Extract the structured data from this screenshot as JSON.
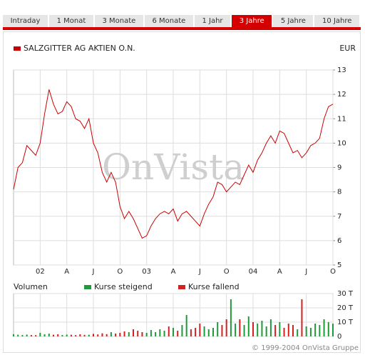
{
  "tabs": [
    {
      "label": "Intraday",
      "active": false
    },
    {
      "label": "1 Monat",
      "active": false
    },
    {
      "label": "3 Monate",
      "active": false
    },
    {
      "label": "6 Monate",
      "active": false
    },
    {
      "label": "1 Jahr",
      "active": false
    },
    {
      "label": "3 Jahre",
      "active": true
    },
    {
      "label": "5 Jahre",
      "active": false
    },
    {
      "label": "10 Jahre",
      "active": false
    }
  ],
  "watermark": "OnVista",
  "copyright": "© 1999-2004 OnVista Gruppe",
  "chart_data": [
    {
      "type": "line",
      "unit": "EUR",
      "categories": [
        null,
        null,
        null,
        null,
        null,
        null,
        "02",
        null,
        null,
        null,
        null,
        null,
        "A",
        null,
        null,
        null,
        null,
        null,
        "J",
        null,
        null,
        null,
        null,
        null,
        "O",
        null,
        null,
        null,
        null,
        null,
        "03",
        null,
        null,
        null,
        null,
        null,
        "A",
        null,
        null,
        null,
        null,
        null,
        "J",
        null,
        null,
        null,
        null,
        null,
        "O",
        null,
        null,
        null,
        null,
        null,
        "04",
        null,
        null,
        null,
        null,
        null,
        "A",
        null,
        null,
        null,
        null,
        null,
        "J",
        null,
        null,
        null,
        null,
        null,
        "O"
      ],
      "series": [
        {
          "name": "SALZGITTER AG AKTIEN O.N.",
          "color": "#cc0000",
          "values": [
            8.1,
            9.0,
            9.2,
            9.9,
            9.7,
            9.5,
            10.0,
            11.2,
            12.2,
            11.6,
            11.2,
            11.3,
            11.7,
            11.5,
            11.0,
            10.9,
            10.6,
            11.0,
            10.0,
            9.6,
            8.8,
            8.4,
            8.8,
            8.4,
            7.4,
            6.9,
            7.2,
            6.9,
            6.5,
            6.1,
            6.2,
            6.6,
            6.9,
            7.1,
            7.2,
            7.1,
            7.3,
            6.8,
            7.1,
            7.2,
            7.0,
            6.8,
            6.6,
            7.1,
            7.5,
            7.8,
            8.4,
            8.3,
            8.0,
            8.2,
            8.4,
            8.3,
            8.7,
            9.1,
            8.8,
            9.3,
            9.6,
            10.0,
            10.3,
            10.0,
            10.5,
            10.4,
            10.0,
            9.6,
            9.7,
            9.4,
            9.6,
            9.9,
            10.0,
            10.2,
            11.0,
            11.5,
            11.6
          ]
        }
      ],
      "ylim": [
        5,
        13
      ],
      "yticks": [
        5,
        6,
        7,
        8,
        9,
        10,
        11,
        12,
        13
      ],
      "grid": true
    },
    {
      "type": "bar",
      "title": "Volumen",
      "series": [
        {
          "name": "Kurse steigend",
          "color": "#1f9a3a",
          "values": [
            1500,
            1200,
            1000,
            1300,
            null,
            null,
            2500,
            1500,
            2000,
            null,
            null,
            1000,
            1300,
            null,
            null,
            null,
            null,
            1200,
            null,
            null,
            null,
            null,
            3000,
            null,
            null,
            null,
            3000,
            null,
            null,
            null,
            2500,
            4500,
            3000,
            5000,
            4000,
            null,
            6000,
            null,
            8000,
            15000,
            null,
            null,
            null,
            7000,
            5000,
            6000,
            10000,
            null,
            null,
            26000,
            9000,
            null,
            8000,
            14000,
            null,
            9000,
            11000,
            7000,
            12000,
            null,
            10000,
            null,
            null,
            null,
            5000,
            null,
            7000,
            6000,
            9000,
            8000,
            12000,
            10000,
            9000
          ]
        },
        {
          "name": "Kurse fallend",
          "color": "#d42020",
          "values": [
            null,
            null,
            null,
            null,
            1000,
            900,
            null,
            null,
            null,
            1200,
            1500,
            null,
            null,
            1200,
            900,
            1500,
            1100,
            null,
            1800,
            1400,
            2200,
            1600,
            null,
            2000,
            2500,
            3500,
            null,
            5000,
            4000,
            3000,
            null,
            null,
            null,
            null,
            null,
            7000,
            null,
            4000,
            null,
            null,
            5000,
            6000,
            9000,
            null,
            null,
            null,
            null,
            8000,
            12000,
            null,
            null,
            12000,
            null,
            null,
            10000,
            null,
            null,
            null,
            null,
            8000,
            null,
            6000,
            9000,
            8000,
            null,
            26000,
            null,
            null,
            null,
            null,
            null,
            null,
            null
          ]
        }
      ],
      "ylim": [
        0,
        30000
      ],
      "yticks": [
        0,
        {
          "value": 10000,
          "label": "10 T"
        },
        {
          "value": 20000,
          "label": "20 T"
        },
        {
          "value": 30000,
          "label": "30 T"
        }
      ],
      "grid": true
    }
  ]
}
